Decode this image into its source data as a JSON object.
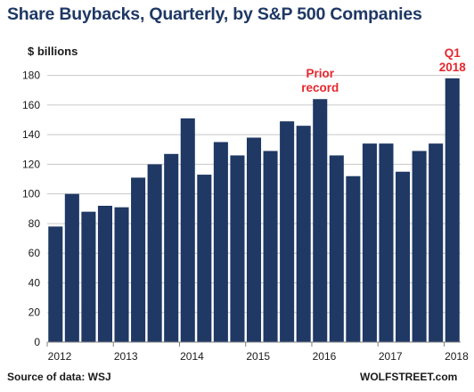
{
  "title": "Share Buybacks, Quarterly, by S&P 500 Companies",
  "y_unit_label": "$ billions",
  "source_text": "Source of data: WSJ",
  "brand_text": "WOLFSTREET.com",
  "colors": {
    "bar": "#1f3864",
    "grid": "#c8c8c8",
    "annotation": "#e8262d"
  },
  "chart_data": {
    "type": "bar",
    "title": "Share Buybacks, Quarterly, by S&P 500 Companies",
    "ylabel": "$ billions",
    "ylim": [
      0,
      190
    ],
    "yticks": [
      0,
      20,
      40,
      60,
      80,
      100,
      120,
      140,
      160,
      180
    ],
    "grid": true,
    "x_tick_labels": [
      "2012",
      "2013",
      "2014",
      "2015",
      "2016",
      "2017",
      "2018"
    ],
    "categories": [
      "2012 Q1",
      "2012 Q2",
      "2012 Q3",
      "2012 Q4",
      "2013 Q1",
      "2013 Q2",
      "2013 Q3",
      "2013 Q4",
      "2014 Q1",
      "2014 Q2",
      "2014 Q3",
      "2014 Q4",
      "2015 Q1",
      "2015 Q2",
      "2015 Q3",
      "2015 Q4",
      "2016 Q1",
      "2016 Q2",
      "2016 Q3",
      "2016 Q4",
      "2017 Q1",
      "2017 Q2",
      "2017 Q3",
      "2017 Q4",
      "2018 Q1"
    ],
    "values": [
      78,
      100,
      88,
      92,
      91,
      111,
      120,
      127,
      151,
      113,
      135,
      126,
      138,
      129,
      149,
      146,
      164,
      126,
      112,
      134,
      134,
      115,
      129,
      134,
      178
    ],
    "annotations": [
      {
        "lines": [
          "Prior",
          "record"
        ],
        "category": "2016 Q1"
      },
      {
        "lines": [
          "Q1",
          "2018"
        ],
        "category": "2018 Q1"
      }
    ]
  }
}
